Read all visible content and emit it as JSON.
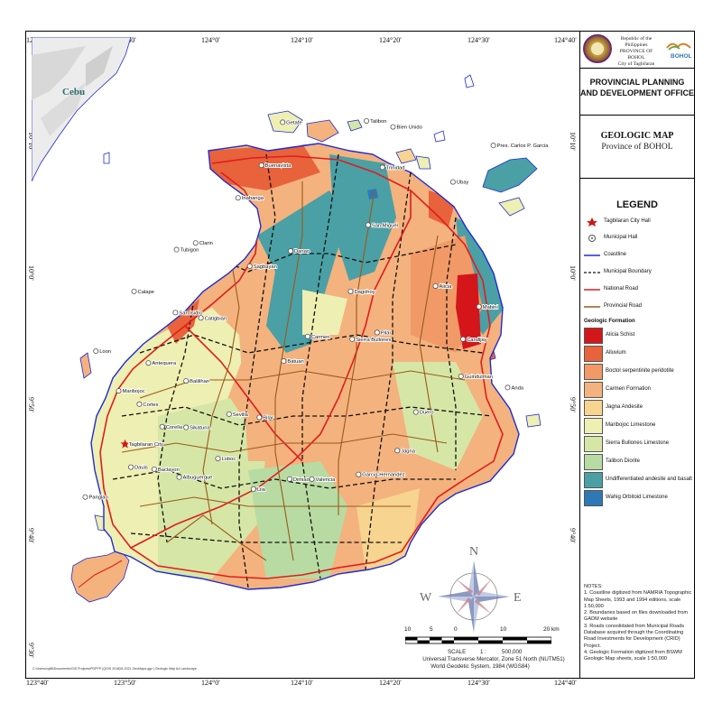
{
  "map": {
    "title": "GEOLOGIC MAP",
    "subtitle": "Province of BOHOL",
    "office": "PROVINCIAL PLANNING AND DEVELOPMENT OFFICE",
    "header": {
      "republic_lines": [
        "Republic of the Philippines",
        "PROVINCE OF BOHOL",
        "City of Tagbilaran"
      ],
      "brand_text": "BOHOL"
    },
    "coords": {
      "top": [
        "123°40'",
        "123°50'",
        "124°0'",
        "124°10'",
        "124°20'",
        "124°30'",
        "124°40'"
      ],
      "bottom": [
        "123°40'",
        "123°50'",
        "124°0'",
        "124°10'",
        "124°20'",
        "124°30'",
        "124°40'"
      ],
      "left": [
        "10°10'",
        "10°0'",
        "9°50'",
        "9°40'",
        "9°30'"
      ],
      "right": [
        "10°10'",
        "10°0'",
        "9°50'",
        "9°40'",
        "9°30'"
      ]
    },
    "neighbor_label": "Cebu",
    "places": [
      {
        "name": "Getafe",
        "lon": 124.152,
        "lat": 10.145
      },
      {
        "name": "Talibon",
        "lon": 124.31,
        "lat": 10.147
      },
      {
        "name": "Bien Unido",
        "lon": 124.36,
        "lat": 10.138
      },
      {
        "name": "Pres. Carlos P. Garcia",
        "lon": 124.549,
        "lat": 10.11
      },
      {
        "name": "Buenavista",
        "lon": 124.112,
        "lat": 10.08
      },
      {
        "name": "Trinidad",
        "lon": 124.34,
        "lat": 10.077
      },
      {
        "name": "Ubay",
        "lon": 124.473,
        "lat": 10.055
      },
      {
        "name": "Inabanga",
        "lon": 124.068,
        "lat": 10.031
      },
      {
        "name": "San Miguel",
        "lon": 124.313,
        "lat": 9.99
      },
      {
        "name": "Clarin",
        "lon": 123.988,
        "lat": 9.963
      },
      {
        "name": "Tubigon",
        "lon": 123.952,
        "lat": 9.953
      },
      {
        "name": "Danao",
        "lon": 124.167,
        "lat": 9.951
      },
      {
        "name": "Sagbayan",
        "lon": 124.09,
        "lat": 9.928
      },
      {
        "name": "Alicia",
        "lon": 124.44,
        "lat": 9.898
      },
      {
        "name": "Calape",
        "lon": 123.872,
        "lat": 9.89
      },
      {
        "name": "Dagohoy",
        "lon": 124.28,
        "lat": 9.89
      },
      {
        "name": "Mabini",
        "lon": 124.522,
        "lat": 9.867
      },
      {
        "name": "San Isidro",
        "lon": 123.95,
        "lat": 9.858
      },
      {
        "name": "Catigbian",
        "lon": 123.998,
        "lat": 9.85
      },
      {
        "name": "Pilar",
        "lon": 124.33,
        "lat": 9.828
      },
      {
        "name": "Candijay",
        "lon": 124.492,
        "lat": 9.818
      },
      {
        "name": "Carmen",
        "lon": 124.199,
        "lat": 9.822
      },
      {
        "name": "Sierra Bullones",
        "lon": 124.283,
        "lat": 9.818
      },
      {
        "name": "Loon",
        "lon": 123.8,
        "lat": 9.8
      },
      {
        "name": "Antequera",
        "lon": 123.899,
        "lat": 9.782
      },
      {
        "name": "Batuan",
        "lon": 124.154,
        "lat": 9.785
      },
      {
        "name": "Guindulman",
        "lon": 124.488,
        "lat": 9.762
      },
      {
        "name": "Balilihan",
        "lon": 123.97,
        "lat": 9.755
      },
      {
        "name": "Anda",
        "lon": 124.576,
        "lat": 9.745
      },
      {
        "name": "Maribojoc",
        "lon": 123.843,
        "lat": 9.74
      },
      {
        "name": "Cortes",
        "lon": 123.882,
        "lat": 9.72
      },
      {
        "name": "Sevilla",
        "lon": 124.051,
        "lat": 9.705
      },
      {
        "name": "Bilar",
        "lon": 124.108,
        "lat": 9.7
      },
      {
        "name": "Duero",
        "lon": 124.403,
        "lat": 9.708
      },
      {
        "name": "Corella",
        "lon": 123.925,
        "lat": 9.686
      },
      {
        "name": "Sikatuna",
        "lon": 123.97,
        "lat": 9.685
      },
      {
        "name": "Tagbilaran City",
        "lon": 123.855,
        "lat": 9.66
      },
      {
        "name": "Jagna",
        "lon": 124.368,
        "lat": 9.65
      },
      {
        "name": "Loboc",
        "lon": 124.03,
        "lat": 9.638
      },
      {
        "name": "Dauis",
        "lon": 123.866,
        "lat": 9.625
      },
      {
        "name": "Baclayon",
        "lon": 123.91,
        "lat": 9.622
      },
      {
        "name": "Albuquerque",
        "lon": 123.957,
        "lat": 9.61
      },
      {
        "name": "Dimiao",
        "lon": 124.165,
        "lat": 9.607
      },
      {
        "name": "Valencia",
        "lon": 124.207,
        "lat": 9.607
      },
      {
        "name": "Garcia-Hernandez",
        "lon": 124.295,
        "lat": 9.614
      },
      {
        "name": "Lila",
        "lon": 124.097,
        "lat": 9.592
      },
      {
        "name": "Panglao",
        "lon": 123.78,
        "lat": 9.58
      }
    ],
    "legend": {
      "title": "LEGEND",
      "symbols": [
        {
          "label": "Tagbilaran City Hall",
          "kind": "star",
          "color": "#d01818"
        },
        {
          "label": "Municipal Hall",
          "kind": "circle",
          "color": "#555555"
        },
        {
          "label": "Coastline",
          "kind": "line",
          "color": "#1f2bd6"
        },
        {
          "label": "Municipal Boundary",
          "kind": "dash",
          "color": "#111111"
        },
        {
          "label": "National Road",
          "kind": "line",
          "color": "#e01d1d"
        },
        {
          "label": "Provincial Road",
          "kind": "line",
          "color": "#9a5a1a"
        }
      ],
      "formation_header": "Geologic Formation",
      "formations": [
        {
          "label": "Alicia Schist",
          "color": "#d4161b"
        },
        {
          "label": "Alluvium",
          "color": "#e8623b"
        },
        {
          "label": "Boctol serpentinite peridotite",
          "color": "#f19a67"
        },
        {
          "label": "Carmen Formation",
          "color": "#f4b27e"
        },
        {
          "label": "Jagna Andesite",
          "color": "#f7d48f"
        },
        {
          "label": "Maribojoc Limestone",
          "color": "#eeefb2"
        },
        {
          "label": "Sierra Bullones Limestone",
          "color": "#d6e6a6"
        },
        {
          "label": "Talibon Diorite",
          "color": "#b7dba2"
        },
        {
          "label": "Undifferentiated andesite and basalt",
          "color": "#4aa0a5"
        },
        {
          "label": "Wahig Orbitoid Limestone",
          "color": "#2e78b6"
        }
      ]
    },
    "scale": {
      "ticks": [
        "10",
        "5",
        "0",
        "10",
        "20 km"
      ],
      "label": "SCALE",
      "ratio": "1 :",
      "denominator": "500,000",
      "projection_lines": [
        "Universal Transverse Mercator, Zone 51 North (NUTM51)",
        "World Geodetic System, 1984 (WGS84)"
      ]
    },
    "compass": {
      "n": "N",
      "e": "E",
      "s": "S",
      "w": "W"
    },
    "notes": {
      "title": "NOTES:",
      "items": [
        "1. Coastline digitized from NAMRIA Topographic Map Sheets, 1993 and 1994 editions, scale 1:50,000",
        "2. Boundaries based on files downloaded from GADM website",
        "3. Roads consolidated from Municipal Roads Database acquired through the Coordinating Road Investments for Development (CRID) Project.",
        "4. Geologic Formation digitized from BSWM Geologic Map sheets, scale 1:50,000"
      ]
    },
    "file_path": "C:\\Users\\cq86\\Documents\\GIS Projects\\PDPFP (QGIS 2018)\\5-2021 GeoMaps.qgz | Geologic Map A4 Landscape",
    "colors": {
      "sea": "#ffffff",
      "coastline": "#1f2bd6",
      "national_road": "#e01d1d",
      "provincial_road": "#9a5a1a",
      "boundary": "#111111"
    }
  }
}
